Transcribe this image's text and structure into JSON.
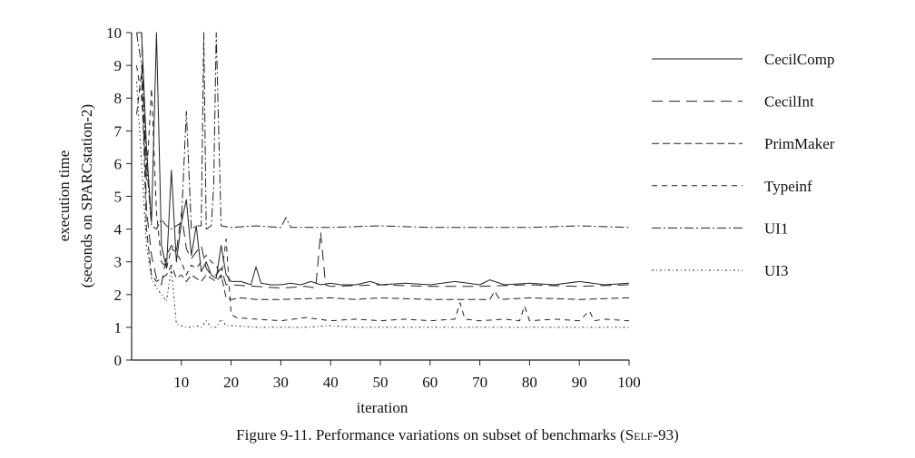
{
  "caption": {
    "prefix": "Figure 9-11.  Performance variations on subset of benchmarks (",
    "smallcaps": "Self",
    "suffix": "-93)"
  },
  "chart_data": {
    "type": "line",
    "title": "",
    "xlabel": "iteration",
    "ylabel_line1": "execution time",
    "ylabel_line2": "(seconds on SPARCstation-2)",
    "xlim": [
      0,
      100
    ],
    "ylim": [
      0,
      10
    ],
    "xticks": [
      10,
      20,
      30,
      40,
      50,
      60,
      70,
      80,
      90,
      100
    ],
    "yticks": [
      0,
      1,
      2,
      3,
      4,
      5,
      6,
      7,
      8,
      9,
      10
    ],
    "grid": false,
    "legend_position": "right",
    "series": [
      {
        "name": "CecilComp",
        "dash": "none",
        "x": [
          1,
          2,
          3,
          4,
          5,
          6,
          7,
          8,
          9,
          10,
          11,
          12,
          13,
          14,
          15,
          16,
          17,
          18,
          19,
          20,
          22,
          24,
          25,
          26,
          28,
          30,
          32,
          34,
          36,
          38,
          40,
          42,
          45,
          48,
          50,
          55,
          60,
          65,
          70,
          72,
          75,
          80,
          85,
          90,
          95,
          100
        ],
        "y": [
          10,
          10,
          6.5,
          4.2,
          10,
          3.5,
          2.8,
          5.8,
          3.0,
          4.2,
          4.9,
          3.2,
          4.1,
          2.7,
          3.0,
          2.6,
          2.5,
          3.5,
          2.6,
          2.4,
          2.4,
          2.3,
          2.85,
          2.35,
          2.3,
          2.3,
          2.35,
          2.3,
          2.4,
          2.3,
          2.35,
          2.3,
          2.3,
          2.4,
          2.3,
          2.35,
          2.3,
          2.4,
          2.3,
          2.45,
          2.3,
          2.35,
          2.3,
          2.4,
          2.3,
          2.35
        ]
      },
      {
        "name": "CecilInt",
        "dash": "12,7",
        "x": [
          1,
          2,
          3,
          4,
          5,
          6,
          7,
          8,
          9,
          10,
          11,
          12,
          13,
          14,
          15,
          16,
          17,
          18,
          19,
          20,
          25,
          30,
          35,
          37,
          38,
          39,
          40,
          50,
          60,
          70,
          80,
          90,
          100
        ],
        "y": [
          10,
          10,
          4.6,
          3.2,
          2.5,
          2.3,
          3.2,
          3.5,
          3.3,
          4.5,
          3.4,
          3.1,
          3.3,
          3.5,
          2.8,
          2.6,
          2.6,
          2.8,
          2.3,
          2.3,
          2.25,
          2.2,
          2.25,
          2.2,
          3.9,
          2.3,
          2.25,
          2.3,
          2.25,
          2.25,
          2.3,
          2.25,
          2.3
        ]
      },
      {
        "name": "PrimMaker",
        "dash": "8,4",
        "x": [
          1,
          2,
          3,
          4,
          5,
          6,
          7,
          8,
          9,
          10,
          11,
          12,
          13,
          14,
          15,
          16,
          17,
          18,
          19,
          20,
          22,
          25,
          30,
          40,
          45,
          50,
          60,
          70,
          72,
          73,
          74,
          80,
          90,
          100
        ],
        "y": [
          7.5,
          8.8,
          4.0,
          2.6,
          2.4,
          2.5,
          2.6,
          2.9,
          2.5,
          2.6,
          2.4,
          2.6,
          2.5,
          2.4,
          2.6,
          2.5,
          2.4,
          2.6,
          1.9,
          1.85,
          1.9,
          1.85,
          1.85,
          1.9,
          1.85,
          1.9,
          1.85,
          1.85,
          1.85,
          2.1,
          1.85,
          1.9,
          1.85,
          1.9
        ]
      },
      {
        "name": "Typeinf",
        "dash": "6,5",
        "x": [
          1,
          2,
          3,
          4,
          5,
          6,
          7,
          8,
          9,
          10,
          11,
          12,
          13,
          14,
          15,
          16,
          17,
          18,
          19,
          20,
          21,
          25,
          30,
          35,
          40,
          45,
          50,
          55,
          60,
          65,
          66,
          67,
          70,
          75,
          78,
          79,
          80,
          85,
          90,
          92,
          93,
          95,
          100
        ],
        "y": [
          9.0,
          8.0,
          5.5,
          8.3,
          4.5,
          3.0,
          2.8,
          3.4,
          3.3,
          3.0,
          2.6,
          2.9,
          2.8,
          3.0,
          3.2,
          3.0,
          2.9,
          2.5,
          3.7,
          1.4,
          1.3,
          1.25,
          1.2,
          1.3,
          1.2,
          1.25,
          1.2,
          1.25,
          1.2,
          1.25,
          1.75,
          1.25,
          1.2,
          1.25,
          1.2,
          1.65,
          1.2,
          1.25,
          1.2,
          1.5,
          1.2,
          1.25,
          1.2
        ]
      },
      {
        "name": "UI1",
        "dash": "10,3,2,3",
        "x": [
          1,
          2,
          3,
          4,
          5,
          6,
          7,
          8,
          9,
          10,
          11,
          12,
          13,
          14,
          14.5,
          15,
          16,
          16.5,
          17,
          18,
          20,
          25,
          30,
          31,
          32,
          35,
          40,
          50,
          60,
          70,
          80,
          90,
          100
        ],
        "y": [
          10,
          9.0,
          6.0,
          4.1,
          4.0,
          4.3,
          4.1,
          4.0,
          4.1,
          4.2,
          7.6,
          4.0,
          4.1,
          4.1,
          10,
          4.0,
          4.1,
          5.3,
          10,
          4.1,
          4.05,
          4.1,
          4.05,
          4.35,
          4.05,
          4.05,
          4.05,
          4.1,
          4.05,
          4.05,
          4.05,
          4.1,
          4.05
        ]
      },
      {
        "name": "UI3",
        "dash": "2,3,1,3",
        "x": [
          1,
          2,
          3,
          4,
          5,
          6,
          7,
          8,
          9,
          10,
          11,
          12,
          13,
          14,
          15,
          16,
          17,
          18,
          19,
          20,
          25,
          30,
          35,
          40,
          45,
          50,
          60,
          70,
          80,
          90,
          100
        ],
        "y": [
          8.5,
          6.0,
          3.5,
          2.5,
          2.2,
          2.0,
          1.8,
          2.8,
          1.1,
          1.05,
          1.0,
          1.0,
          1.05,
          1.0,
          1.2,
          1.0,
          1.0,
          1.25,
          1.05,
          1.05,
          1.0,
          1.0,
          1.0,
          1.05,
          1.0,
          1.0,
          1.0,
          1.0,
          1.0,
          1.0,
          1.0
        ]
      }
    ]
  }
}
